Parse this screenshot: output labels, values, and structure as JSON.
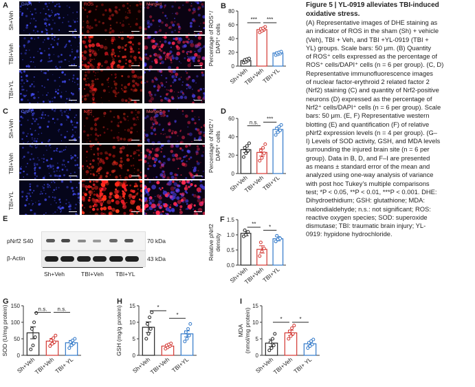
{
  "panels": {
    "A": "A",
    "B": "B",
    "C": "C",
    "D": "D",
    "E": "E",
    "F": "F",
    "G": "G",
    "H": "H",
    "I": "I"
  },
  "micrographs": {
    "A": {
      "column_labels": [
        "DAPI",
        "ROS",
        "Merged"
      ],
      "label_colors": [
        "#6f7dff",
        "#ff3b3b",
        "#ff6a6a"
      ],
      "row_labels": [
        "Sh+Veh",
        "TBI+Veh",
        "TBI+YL"
      ]
    },
    "C": {
      "column_labels": [
        "DAPI",
        "Nrf2",
        "Merged"
      ],
      "label_colors": [
        "#6f7dff",
        "#ff3b3b",
        "#ff6a6a"
      ],
      "row_labels": [
        "Sh+Veh",
        "TBI+Veh",
        "TBI+YL"
      ]
    }
  },
  "western": {
    "bands": [
      "pNrf2 S40",
      "β-Actin"
    ],
    "kda": [
      "70 kDa",
      "43 kDa"
    ],
    "groups": [
      "Sh+Veh",
      "TBI+Veh",
      "TBI+YL"
    ]
  },
  "colors": {
    "sham": "#222222",
    "tbi_veh": "#d2342f",
    "tbi_yl": "#2f77c8"
  },
  "chart_data": [
    {
      "panel": "B",
      "type": "bar",
      "categories": [
        "Sh+Veh",
        "TBI+Veh",
        "TBI+YL"
      ],
      "values": [
        8,
        53,
        19
      ],
      "errors": [
        1.5,
        2.5,
        1.5
      ],
      "points": [
        [
          5,
          6,
          8,
          9,
          10,
          11
        ],
        [
          49,
          51,
          53,
          54,
          55,
          57
        ],
        [
          16,
          17,
          18,
          19,
          20,
          21
        ]
      ],
      "ylabel_lines": [
        "Percentage of ROS⁺/",
        "DAPI⁺ cells"
      ],
      "yticks": [
        0,
        20,
        40,
        60,
        80
      ],
      "ylim": [
        0,
        80
      ],
      "sig": [
        {
          "from": 0,
          "to": 1,
          "label": "***",
          "y": 63
        },
        {
          "from": 1,
          "to": 2,
          "label": "***",
          "y": 63
        }
      ]
    },
    {
      "panel": "D",
      "type": "bar",
      "categories": [
        "Sh+Veh",
        "TBI+Veh",
        "TBI+YL"
      ],
      "values": [
        26,
        23,
        48
      ],
      "errors": [
        3,
        4,
        2.5
      ],
      "points": [
        [
          18,
          22,
          25,
          28,
          30,
          33
        ],
        [
          14,
          17,
          22,
          25,
          28,
          32
        ],
        [
          42,
          45,
          47,
          49,
          51,
          53
        ]
      ],
      "ylabel_lines": [
        "Percentage of Nrf2⁺/",
        "DAPI⁺ cells"
      ],
      "yticks": [
        0,
        20,
        40,
        60
      ],
      "ylim": [
        0,
        60
      ],
      "sig": [
        {
          "from": 0,
          "to": 1,
          "label": "n.s.",
          "y": 52
        },
        {
          "from": 1,
          "to": 2,
          "label": "***",
          "y": 56
        }
      ]
    },
    {
      "panel": "F",
      "type": "bar",
      "categories": [
        "Sh+Veh",
        "TBI+Veh",
        "TBI+YL"
      ],
      "values": [
        1.05,
        0.52,
        0.87
      ],
      "errors": [
        0.08,
        0.12,
        0.07
      ],
      "points": [
        [
          0.95,
          1.0,
          1.1,
          1.15
        ],
        [
          0.3,
          0.45,
          0.55,
          0.75
        ],
        [
          0.78,
          0.85,
          0.88,
          0.97
        ]
      ],
      "ylabel_lines": [
        "Relative pNrf2",
        "density"
      ],
      "yticks": [
        0.0,
        0.5,
        1.0,
        1.5
      ],
      "ytick_labels": [
        "0.0",
        "0.5",
        "1.0",
        "1.5"
      ],
      "ylim": [
        0,
        1.5
      ],
      "sig": [
        {
          "from": 0,
          "to": 1,
          "label": "**",
          "y": 1.25
        },
        {
          "from": 1,
          "to": 2,
          "label": "*",
          "y": 1.15
        }
      ]
    },
    {
      "panel": "G",
      "type": "bar",
      "categories": [
        "Sh+Veh",
        "TBI+Veh",
        "TBI+ YL"
      ],
      "values": [
        68,
        43,
        38
      ],
      "errors": [
        18,
        8,
        7
      ],
      "points": [
        [
          18,
          30,
          55,
          80,
          100,
          128
        ],
        [
          28,
          35,
          40,
          45,
          52,
          60
        ],
        [
          22,
          30,
          36,
          40,
          45,
          50
        ]
      ],
      "ylabel_lines": [
        "SOD (U/mg protein)"
      ],
      "yticks": [
        0,
        50,
        100,
        150
      ],
      "ylim": [
        0,
        150
      ],
      "sig": [
        {
          "from": 0,
          "to": 1,
          "label": "n.s.",
          "y": 130
        },
        {
          "from": 1,
          "to": 2,
          "label": "n.s.",
          "y": 130
        }
      ]
    },
    {
      "panel": "H",
      "type": "bar",
      "categories": [
        "Sh+Veh",
        "TBI+Veh",
        "TBI+YL"
      ],
      "values": [
        8.5,
        2.8,
        6.5
      ],
      "errors": [
        1.6,
        0.4,
        0.9
      ],
      "points": [
        [
          5,
          6.5,
          8,
          9.5,
          11.5,
          13
        ],
        [
          2.0,
          2.4,
          2.8,
          3.0,
          3.3,
          3.6
        ],
        [
          4.2,
          5.0,
          6.0,
          7.0,
          8.0,
          9.5
        ]
      ],
      "ylabel_lines": [
        "GSH (mg/g protein)"
      ],
      "yticks": [
        0,
        5,
        10,
        15
      ],
      "ylim": [
        0,
        15
      ],
      "sig": [
        {
          "from": 0,
          "to": 1,
          "label": "*",
          "y": 13.5
        },
        {
          "from": 1,
          "to": 2,
          "label": "*",
          "y": 11.2
        }
      ]
    },
    {
      "panel": "I",
      "type": "bar",
      "categories": [
        "Sh+Veh",
        "TBI+Veh",
        "TBI+ YL"
      ],
      "values": [
        3.7,
        6.8,
        3.5
      ],
      "errors": [
        1.1,
        0.8,
        0.5
      ],
      "points": [
        [
          1.5,
          2.2,
          3.0,
          4.0,
          5.0,
          6.5
        ],
        [
          5.0,
          5.8,
          6.5,
          7.3,
          8.2,
          9.0
        ],
        [
          2.2,
          2.8,
          3.3,
          3.8,
          4.3,
          4.8
        ]
      ],
      "ylabel_lines": [
        "MDA",
        "(nmol/mg protein)"
      ],
      "yticks": [
        0,
        5,
        10,
        15
      ],
      "ylim": [
        0,
        15
      ],
      "sig": [
        {
          "from": 0,
          "to": 1,
          "label": "*",
          "y": 10
        },
        {
          "from": 1,
          "to": 2,
          "label": "*",
          "y": 10
        }
      ]
    }
  ],
  "caption": {
    "title_l1": "Figure 5  |  YL-0919 alleviates TBI-induced",
    "title_l2": "oxidative stress.",
    "lines": [
      "(A) Representative images of DHE staining as",
      "an indicator of ROS in the sham (Sh) + vehicle",
      "(Veh), TBI + Veh, and TBI +YL-0919 (TBI +",
      "YL) groups. Scale bars: 50 μm. (B) Quantity",
      "of ROS⁺ cells expressed as the percentage of",
      "ROS⁺ cells/DAPI⁺ cells (n = 6 per group). (C, D)",
      "Representative immunofluorescence images",
      "of nuclear factor-erythroid 2 related factor 2",
      "(Nrf2) staining (C) and quantity of Nrf2-positive",
      "neurons (D) expressed as the percentage of",
      "Nrf2⁺ cells/DAPI⁺ cells (n = 6 per group). Scale",
      "bars: 50 μm. (E, F) Representative western",
      "blotting (E) and quantification (F) of relative",
      "pNrf2 expression levels (n = 4 per group). (G–",
      "I) Levels of SOD activity, GSH, and MDA levels",
      "surrounding the injured brain site (n = 6 per",
      "group). Data in B, D, and F–I are presented",
      "as means ± standard error of the mean and",
      "analyzed using one-way analysis of variance",
      "with post hoc Tukey’s multiple comparisons",
      "test; *P < 0.05, **P < 0.01, ***P < 0.001. DHE:",
      "Dihydroethidium; GSH: glutathione; MDA:",
      "malondialdehyde; n.s.: not significant; ROS:",
      "reactive oxygen species; SOD: superoxide",
      "dismutase; TBI: traumatic brain injury; YL-",
      "0919: hypidone hydrochloride."
    ]
  }
}
